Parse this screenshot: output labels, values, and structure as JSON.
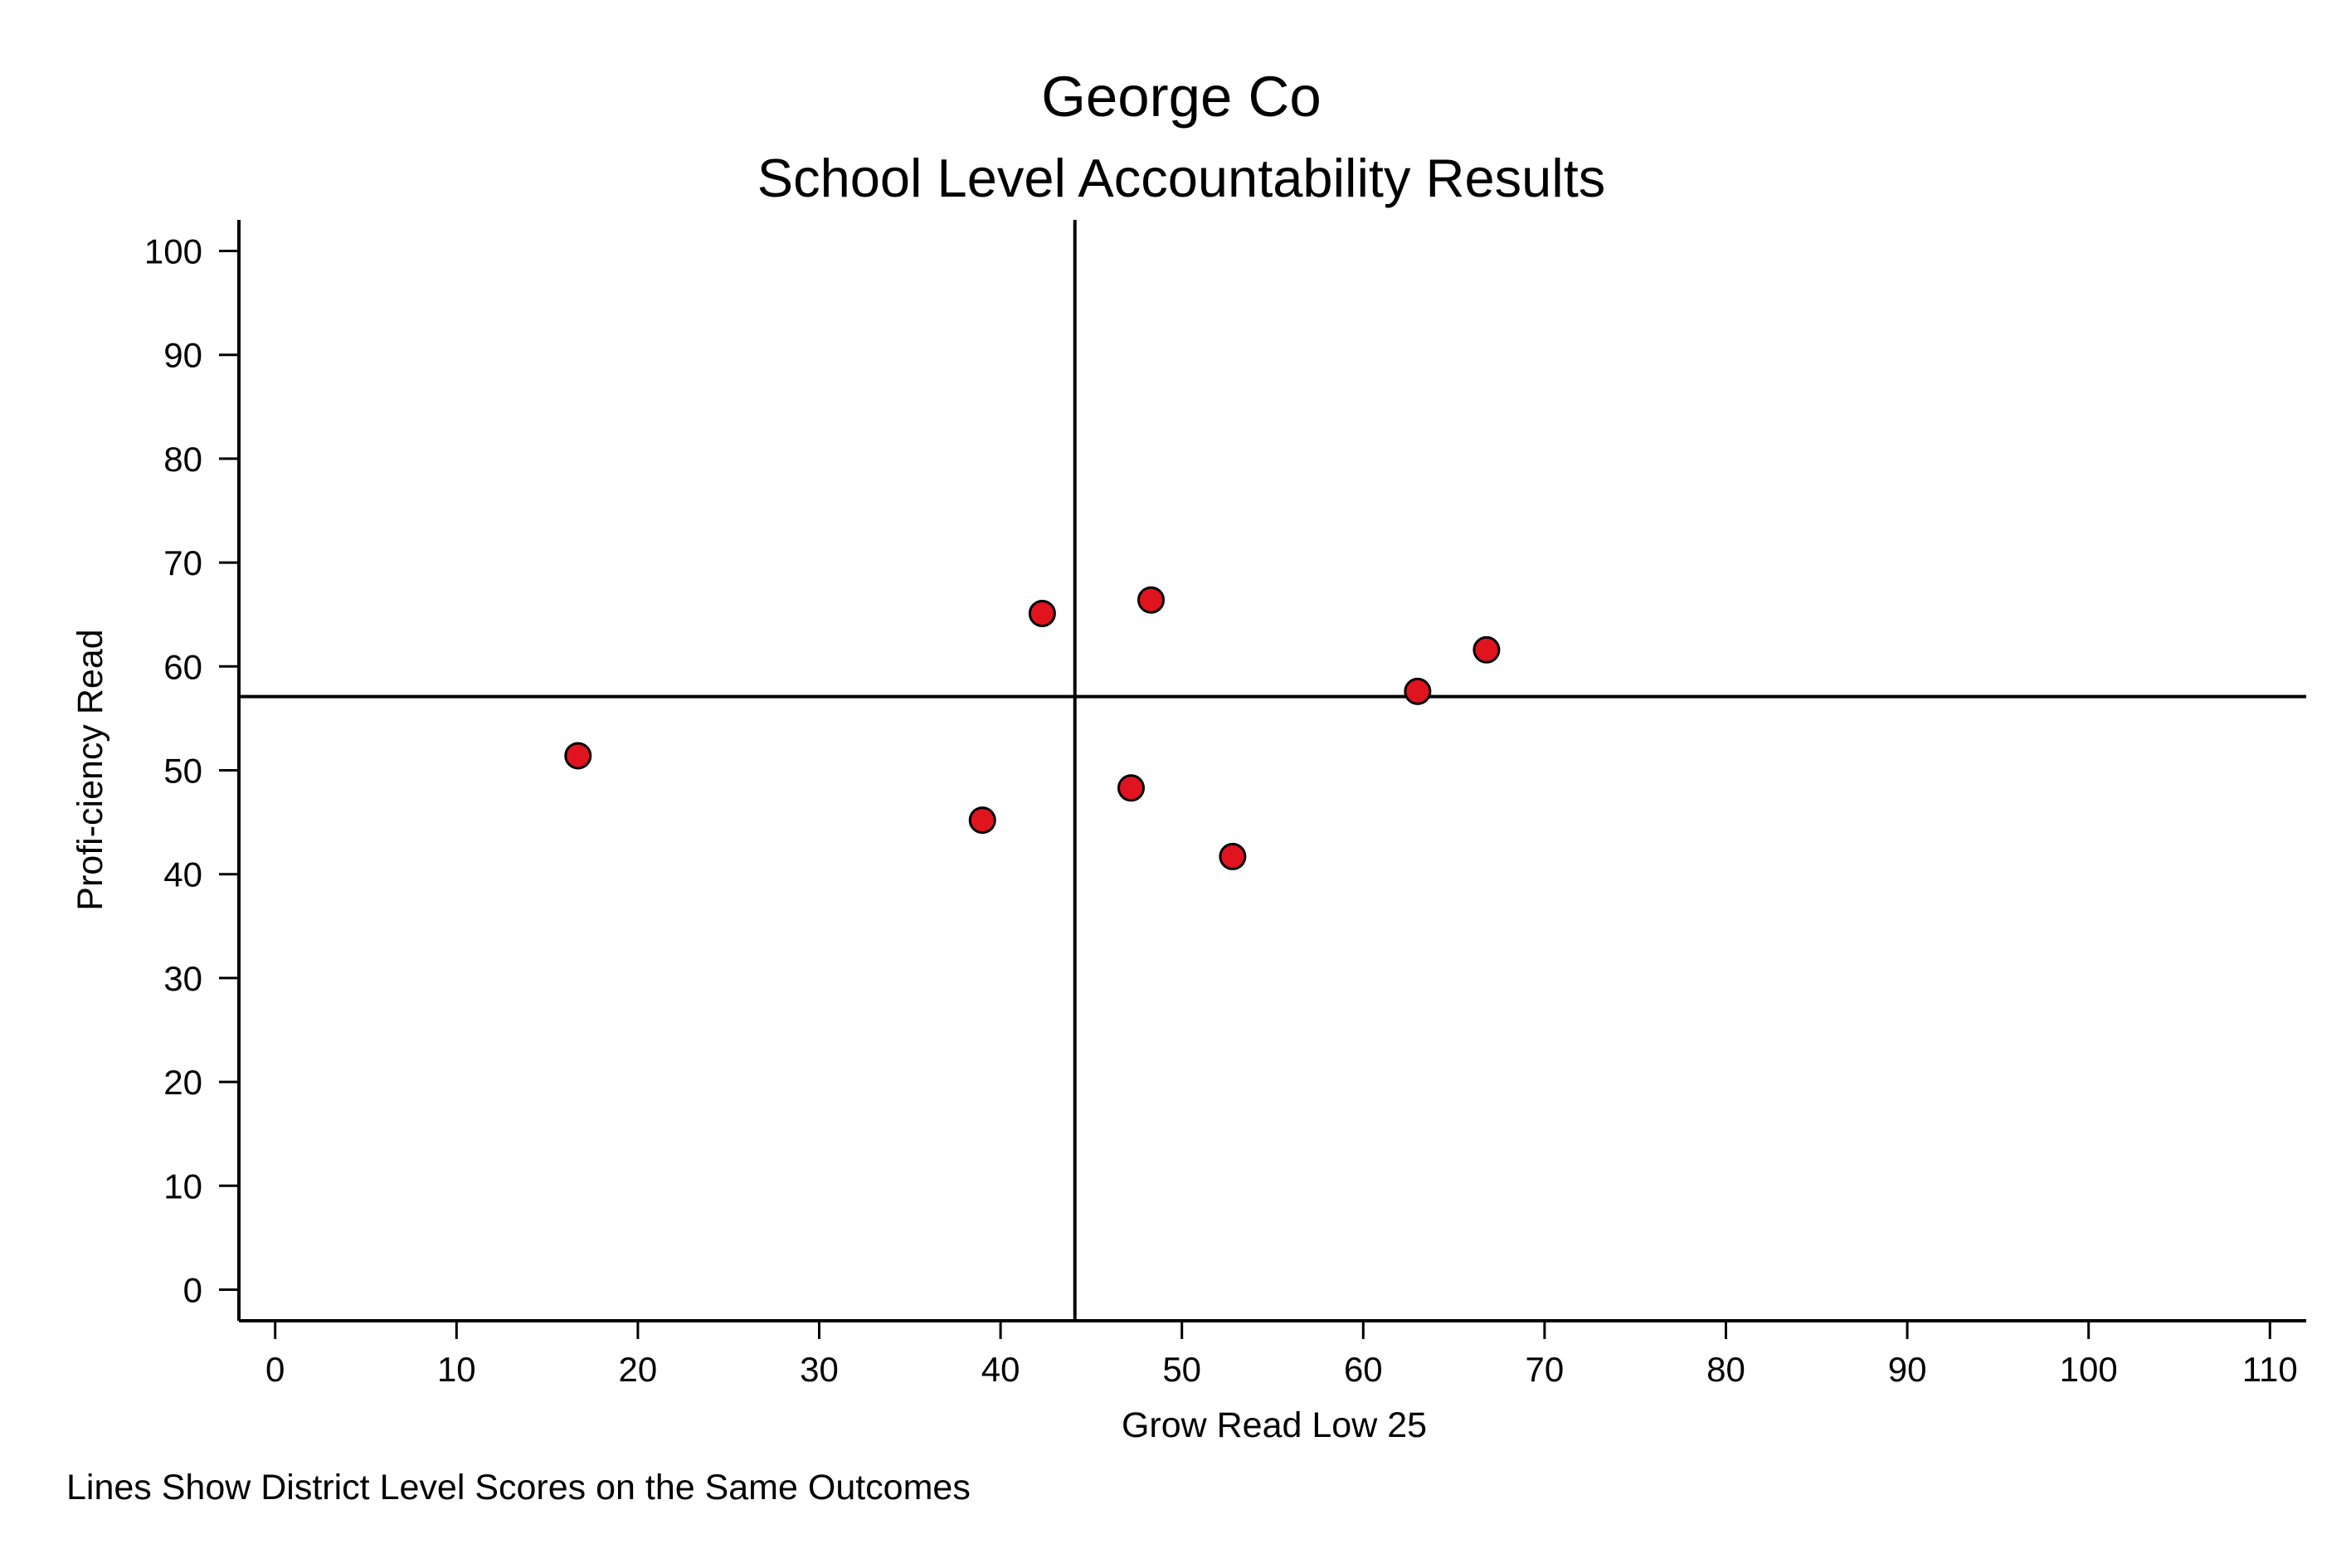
{
  "chart_data": {
    "type": "scatter",
    "title": "George Co",
    "subtitle": "School Level Accountability Results",
    "xlabel": "Grow Read Low 25",
    "ylabel": "Profi-ciency Read",
    "note": "Lines Show District Level Scores on the Same Outcomes",
    "xlim": [
      -2,
      112
    ],
    "ylim": [
      -3,
      103
    ],
    "x_ticks": [
      0,
      10,
      20,
      30,
      40,
      50,
      60,
      70,
      80,
      90,
      100,
      110
    ],
    "y_ticks": [
      0,
      10,
      20,
      30,
      40,
      50,
      60,
      70,
      80,
      90,
      100
    ],
    "reference_lines": {
      "x": 44.1,
      "y": 57.1
    },
    "grid": false,
    "marker_color": "#e0141e",
    "marker_edge_color": "#000000",
    "points": [
      {
        "x": 16.7,
        "y": 51.4
      },
      {
        "x": 39.0,
        "y": 45.2
      },
      {
        "x": 42.3,
        "y": 65.1
      },
      {
        "x": 47.2,
        "y": 48.3
      },
      {
        "x": 48.3,
        "y": 66.4
      },
      {
        "x": 52.8,
        "y": 41.7
      },
      {
        "x": 63.0,
        "y": 57.6
      },
      {
        "x": 66.8,
        "y": 61.6
      }
    ]
  }
}
